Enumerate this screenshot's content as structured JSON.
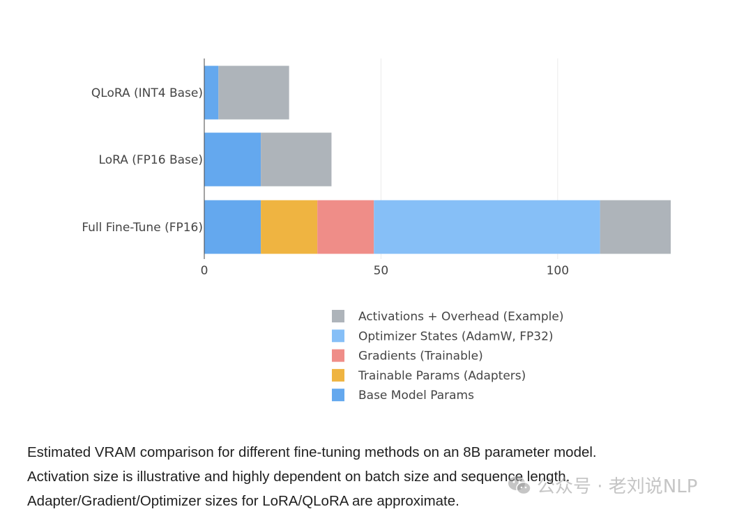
{
  "chart_data": {
    "type": "bar",
    "orientation": "horizontal",
    "stacked": true,
    "title": "",
    "xlabel": "",
    "ylabel": "",
    "xlim": [
      0,
      132
    ],
    "xticks": [
      0,
      50,
      100
    ],
    "grid": true,
    "legend_position": "bottom",
    "categories": [
      "Full Fine-Tune (FP16)",
      "LoRA (FP16 Base)",
      "QLoRA (INT4 Base)"
    ],
    "series": [
      {
        "name": "Base Model Params",
        "color": "#64a8ee",
        "values": [
          16,
          16,
          4
        ]
      },
      {
        "name": "Trainable Params (Adapters)",
        "color": "#efb441",
        "values": [
          16,
          0,
          0
        ]
      },
      {
        "name": "Gradients (Trainable)",
        "color": "#ef8d88",
        "values": [
          16,
          0,
          0
        ]
      },
      {
        "name": "Optimizer States (AdamW, FP32)",
        "color": "#86bff7",
        "values": [
          64,
          0,
          0
        ]
      },
      {
        "name": "Activations + Overhead (Example)",
        "color": "#aeb4ba",
        "values": [
          20,
          20,
          20
        ]
      }
    ]
  },
  "caption": {
    "line1": "Estimated VRAM comparison for different fine-tuning methods on an 8B parameter model.",
    "line2": "Activation size is illustrative and highly dependent on batch size and sequence length.",
    "line3": "Adapter/Gradient/Optimizer sizes for LoRA/QLoRA are approximate."
  },
  "watermark": {
    "text": "公众号 · 老刘说NLP",
    "icon": "wechat-icon"
  }
}
